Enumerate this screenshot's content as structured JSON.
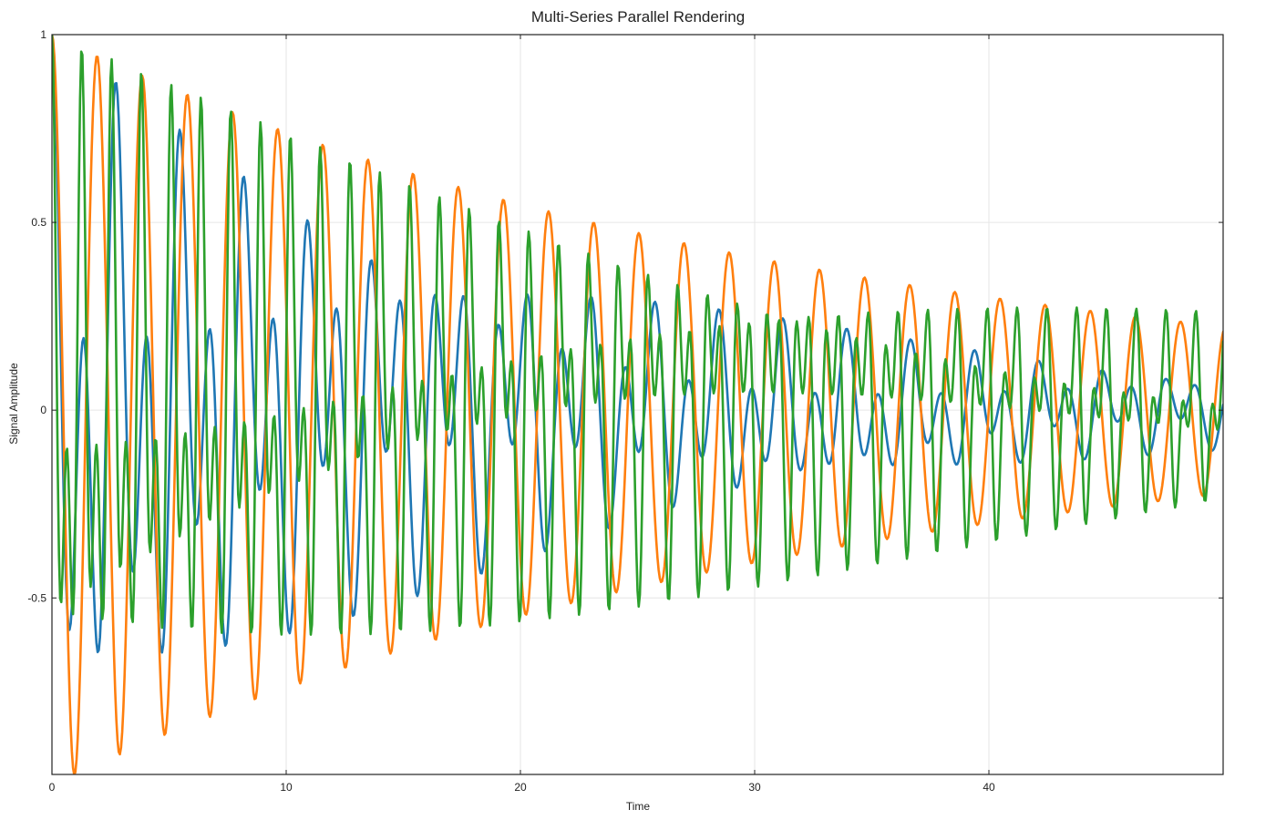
{
  "chart_data": {
    "type": "line",
    "title": "Multi-Series Parallel Rendering",
    "xlabel": "Time",
    "ylabel": "Signal Amplitude",
    "xlim": [
      0,
      50
    ],
    "ylim": [
      -0.97,
      1
    ],
    "grid": true,
    "legend": "none",
    "x_ticks": [
      {
        "value": 0,
        "label": "0"
      },
      {
        "value": 10,
        "label": "10"
      },
      {
        "value": 20,
        "label": "20"
      },
      {
        "value": 30,
        "label": "30"
      },
      {
        "value": 40,
        "label": "40"
      }
    ],
    "y_ticks": [
      {
        "value": 1,
        "label": "1"
      },
      {
        "value": 0.5,
        "label": "0.5"
      },
      {
        "value": 0,
        "label": "0"
      },
      {
        "value": -0.5,
        "label": "-0.5"
      }
    ],
    "sampling": {
      "start": 0,
      "end": 50,
      "step": 0.05
    },
    "series": [
      {
        "color": "#1f77b4",
        "model": {
          "decay": 0.045,
          "components": [
            {
              "amplitude": 0.6,
              "angular_frequency": 4.63,
              "phase": 0
            },
            {
              "amplitude": 0.4,
              "angular_frequency": 2.22,
              "phase": 0
            }
          ]
        }
      },
      {
        "color": "#ff7f0e",
        "model": {
          "decay": 0.03,
          "components": [
            {
              "amplitude": 1.0,
              "angular_frequency": 3.26,
              "phase": 0
            }
          ]
        }
      },
      {
        "color": "#2ca02c",
        "model": {
          "decay": 0.025,
          "components": [
            {
              "amplitude": 0.55,
              "angular_frequency": 4.9,
              "phase": 0
            },
            {
              "amplitude": 0.45,
              "angular_frequency": 9.9,
              "phase": 0
            }
          ]
        }
      }
    ]
  }
}
